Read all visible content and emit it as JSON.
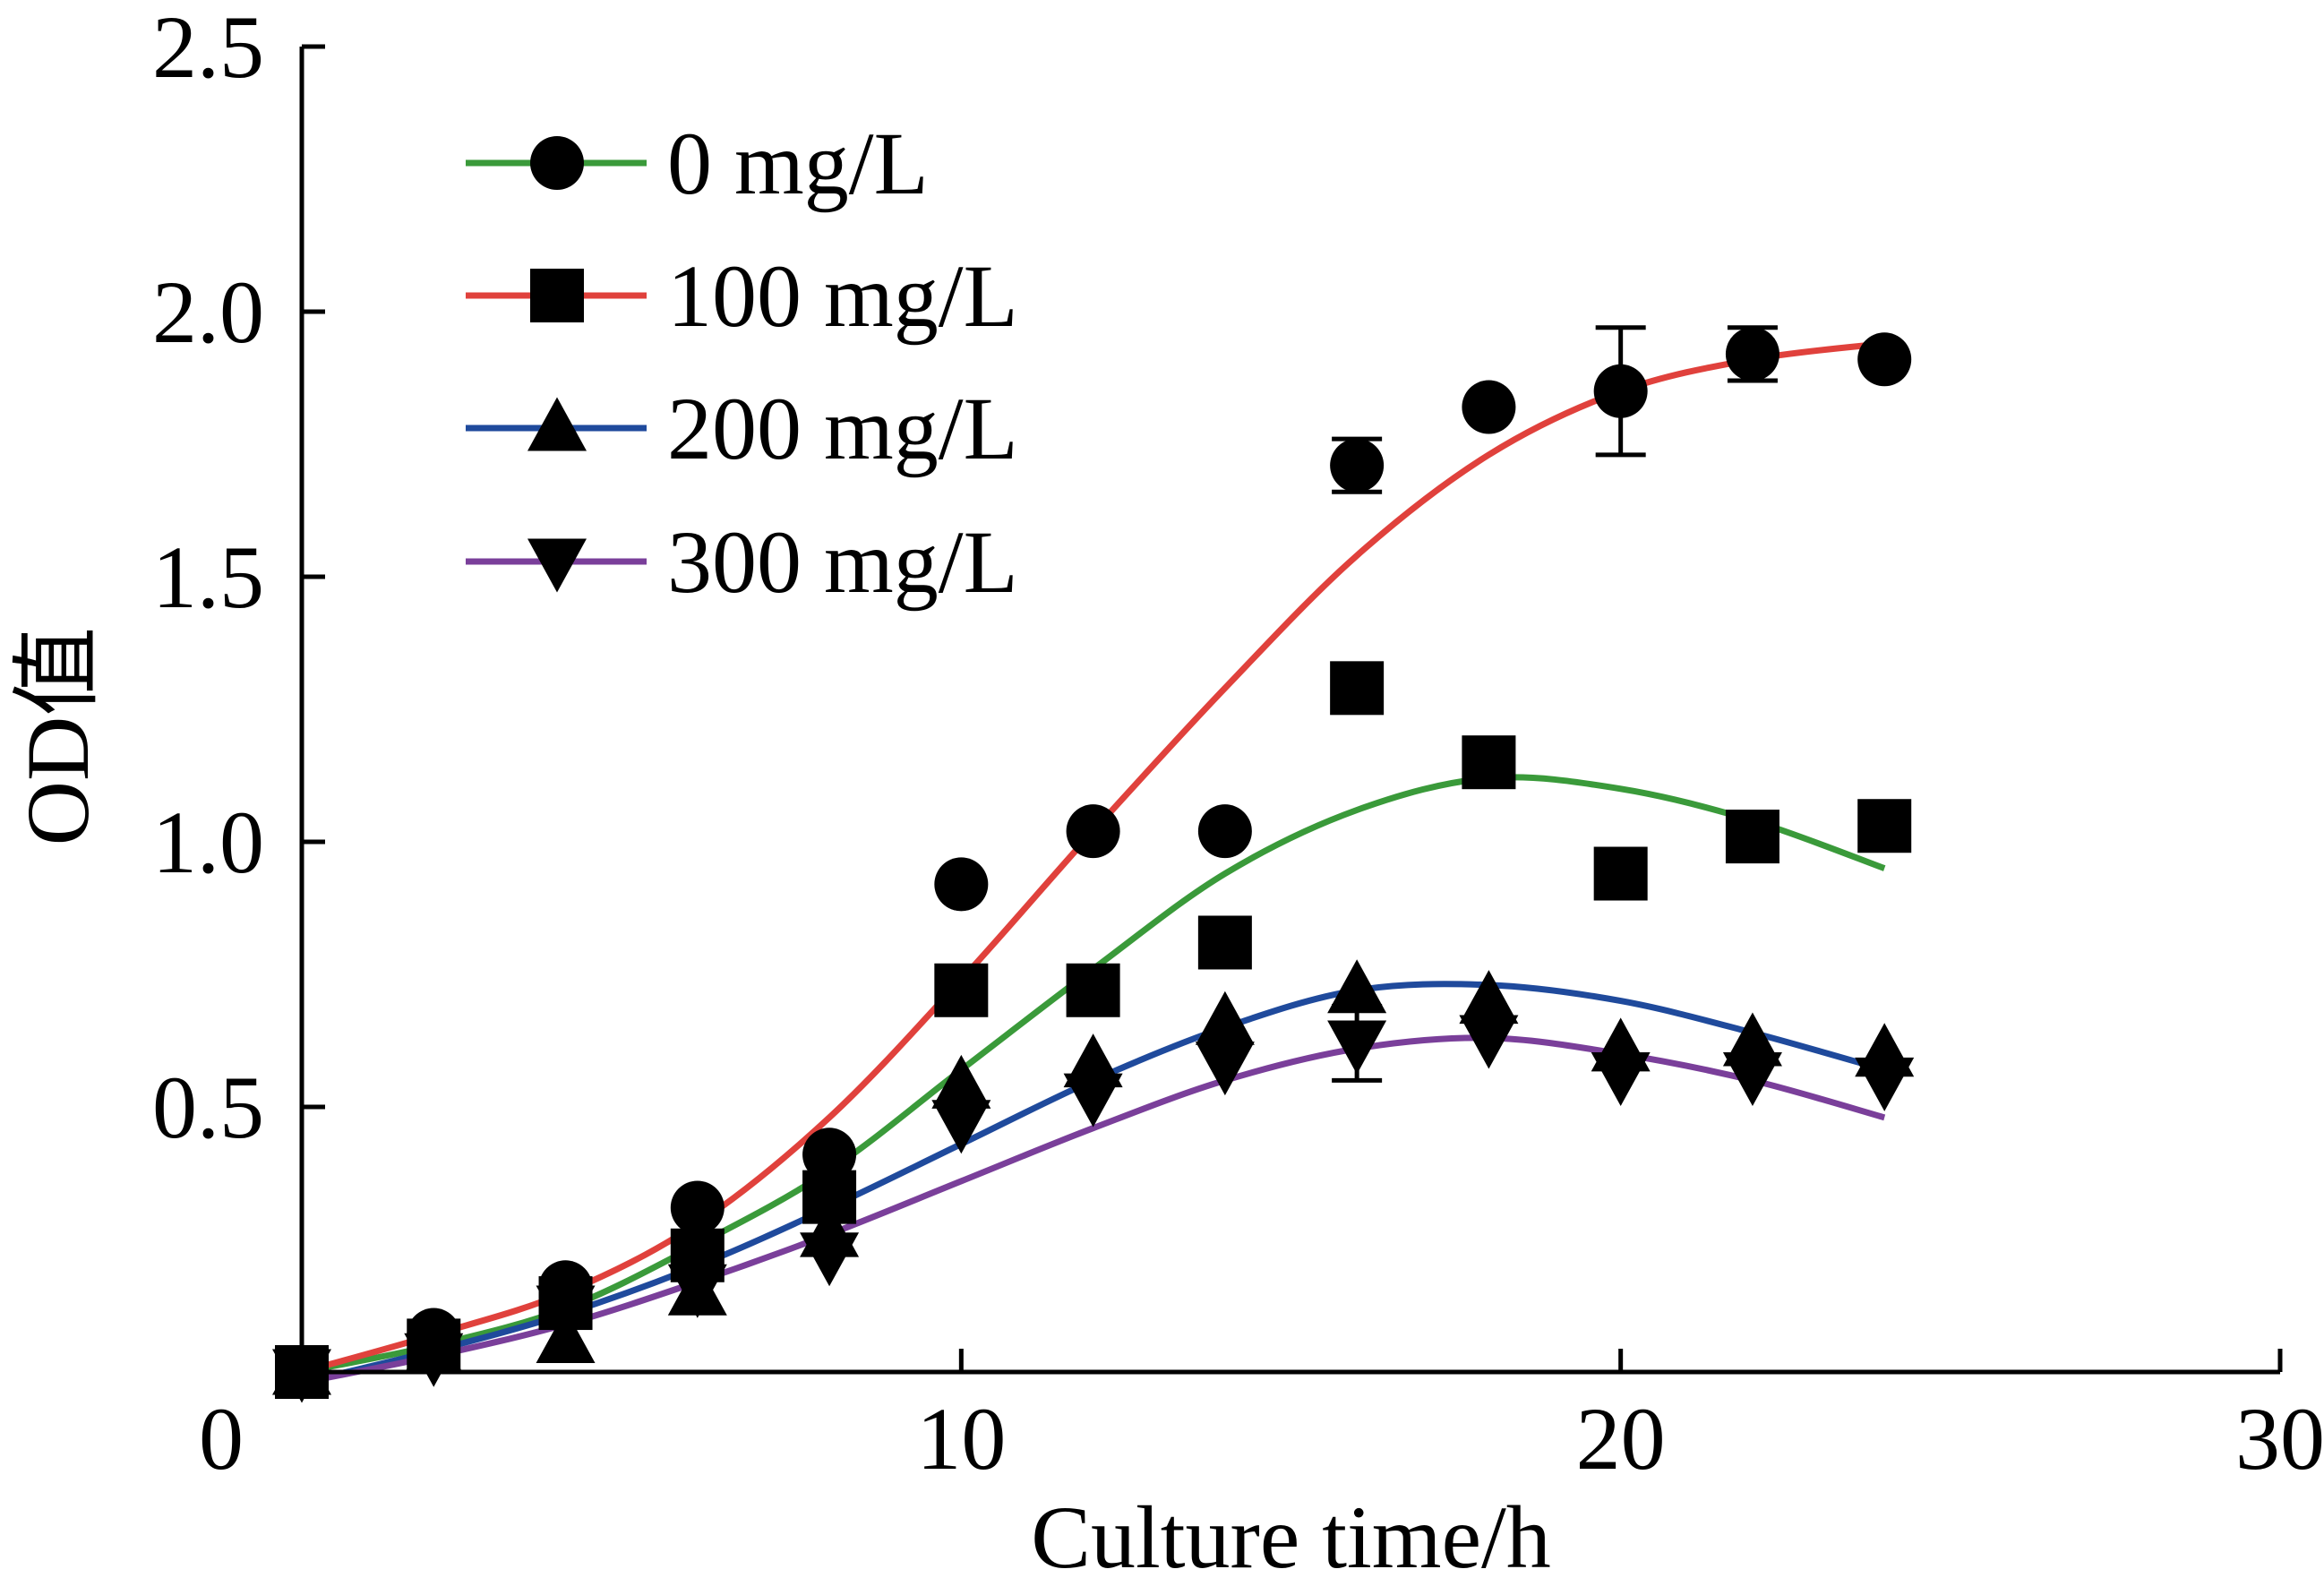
{
  "chart_data": {
    "type": "scatter",
    "xlabel": "Culture time/h",
    "ylabel": "OD值",
    "xlim": [
      0,
      30
    ],
    "ylim": [
      0,
      2.5
    ],
    "xticks": [
      0,
      10,
      20,
      30
    ],
    "xtick_labels": [
      "0",
      "10",
      "20",
      "30"
    ],
    "yticks": [
      0.5,
      1.0,
      1.5,
      2.0,
      2.5
    ],
    "ytick_labels": [
      "0.5",
      "1.0",
      "1.5",
      "2.0",
      "2.5"
    ],
    "grid": false,
    "legend_position": "top-left",
    "series": [
      {
        "name": "0 mg/L",
        "marker": "circle",
        "line_color": "#3a9a3a",
        "x": [
          0,
          2,
          4,
          6,
          8,
          10,
          12,
          14,
          16,
          18,
          20,
          22,
          24
        ],
        "y": [
          0.0,
          0.07,
          0.16,
          0.31,
          0.41,
          0.92,
          1.02,
          1.02,
          1.71,
          1.82,
          1.85,
          1.92,
          1.91
        ],
        "errors": [
          0,
          0,
          0,
          0,
          0,
          0,
          0,
          0,
          0.05,
          0,
          0.12,
          0.05,
          0
        ],
        "fit_x": [
          0,
          2,
          4,
          6,
          8,
          10,
          12,
          14,
          16,
          18,
          20,
          22,
          24
        ],
        "fit_y": [
          0.0,
          0.05,
          0.12,
          0.24,
          0.38,
          0.57,
          0.76,
          0.94,
          1.06,
          1.12,
          1.1,
          1.04,
          0.95
        ]
      },
      {
        "name": "100 mg/L",
        "marker": "square",
        "line_color": "#e0413c",
        "x": [
          0,
          2,
          4,
          6,
          8,
          10,
          12,
          14,
          16,
          18,
          20,
          22,
          24
        ],
        "y": [
          0.0,
          0.05,
          0.13,
          0.22,
          0.33,
          0.72,
          0.72,
          0.81,
          1.29,
          1.15,
          0.94,
          1.01,
          1.03
        ],
        "fit_x": [
          0,
          2,
          4,
          6,
          8,
          10,
          12,
          14,
          16,
          18,
          20,
          22,
          24
        ],
        "fit_y": [
          0.0,
          0.07,
          0.15,
          0.28,
          0.48,
          0.74,
          1.02,
          1.29,
          1.54,
          1.73,
          1.85,
          1.91,
          1.94
        ]
      },
      {
        "name": "200 mg/L",
        "marker": "triangle-up",
        "line_color": "#1f4a9c",
        "x": [
          0,
          2,
          4,
          6,
          8,
          10,
          12,
          14,
          16,
          18,
          20,
          22,
          24
        ],
        "y": [
          0.0,
          0.04,
          0.06,
          0.15,
          0.26,
          0.54,
          0.58,
          0.66,
          0.72,
          0.7,
          0.61,
          0.62,
          0.6
        ],
        "fit_x": [
          0,
          2,
          4,
          6,
          8,
          10,
          12,
          14,
          16,
          18,
          20,
          22,
          24
        ],
        "fit_y": [
          -0.02,
          0.04,
          0.11,
          0.2,
          0.31,
          0.43,
          0.55,
          0.65,
          0.72,
          0.73,
          0.7,
          0.64,
          0.57
        ]
      },
      {
        "name": "300 mg/L",
        "marker": "triangle-down",
        "line_color": "#7a3f9a",
        "x": [
          0,
          2,
          4,
          6,
          8,
          10,
          12,
          14,
          16,
          18,
          20,
          22,
          24
        ],
        "y": [
          0.0,
          0.03,
          0.12,
          0.16,
          0.22,
          0.47,
          0.52,
          0.58,
          0.62,
          0.63,
          0.56,
          0.56,
          0.55
        ],
        "errors": [
          0,
          0,
          0,
          0,
          0,
          0,
          0,
          0,
          0.07,
          0,
          0,
          0,
          0
        ],
        "fit_x": [
          0,
          2,
          4,
          6,
          8,
          10,
          12,
          14,
          16,
          18,
          20,
          22,
          24
        ],
        "fit_y": [
          -0.02,
          0.03,
          0.09,
          0.17,
          0.26,
          0.36,
          0.46,
          0.55,
          0.61,
          0.63,
          0.6,
          0.55,
          0.48
        ]
      }
    ]
  }
}
